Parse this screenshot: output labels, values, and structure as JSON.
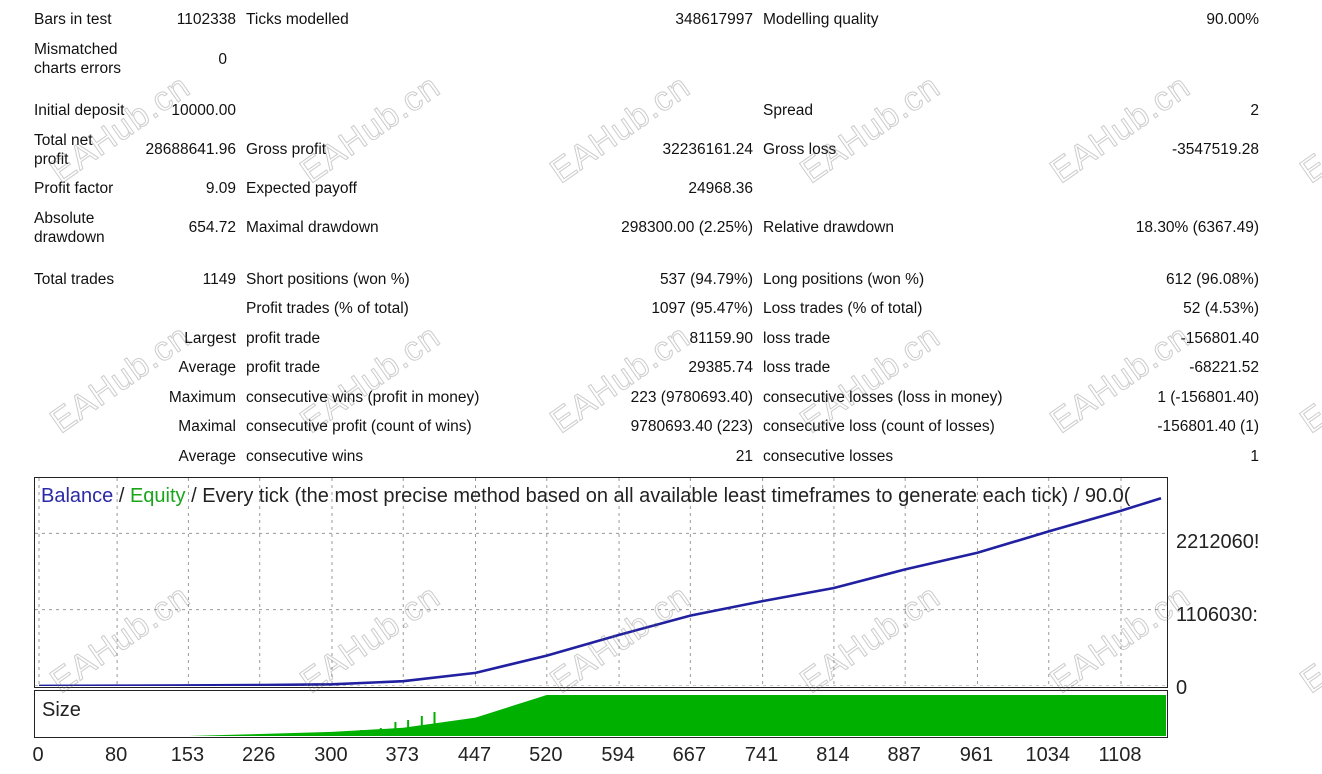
{
  "stats": {
    "bars_in_test": {
      "label": "Bars in test",
      "value": "1102338"
    },
    "ticks_modelled": {
      "label": "Ticks modelled",
      "value": "348617997"
    },
    "modelling_quality": {
      "label": "Modelling quality",
      "value": "90.00%"
    },
    "mismatched": {
      "label": "Mismatched charts errors",
      "value": "0"
    },
    "initial_deposit": {
      "label": "Initial deposit",
      "value": "10000.00"
    },
    "spread": {
      "label": "Spread",
      "value": "2"
    },
    "total_net_profit": {
      "label": "Total net profit",
      "value": "28688641.96"
    },
    "gross_profit": {
      "label": "Gross profit",
      "value": "32236161.24"
    },
    "gross_loss": {
      "label": "Gross loss",
      "value": "-3547519.28"
    },
    "profit_factor": {
      "label": "Profit factor",
      "value": "9.09"
    },
    "expected_payoff": {
      "label": "Expected payoff",
      "value": "24968.36"
    },
    "absolute_drawdown": {
      "label": "Absolute drawdown",
      "value": "654.72"
    },
    "maximal_drawdown": {
      "label": "Maximal drawdown",
      "value": "298300.00 (2.25%)"
    },
    "relative_drawdown": {
      "label": "Relative drawdown",
      "value": "18.30% (6367.49)"
    },
    "total_trades": {
      "label": "Total trades",
      "value": "1149"
    },
    "short_positions": {
      "label": "Short positions (won %)",
      "value": "537 (94.79%)"
    },
    "long_positions": {
      "label": "Long positions (won %)",
      "value": "612 (96.08%)"
    },
    "profit_trades": {
      "label": "Profit trades (% of total)",
      "value": "1097 (95.47%)"
    },
    "loss_trades": {
      "label": "Loss trades (% of total)",
      "value": "52 (4.53%)"
    },
    "largest": {
      "label": "Largest",
      "profit_label": "profit trade",
      "profit_value": "81159.90",
      "loss_label": "loss trade",
      "loss_value": "-156801.40"
    },
    "average": {
      "label": "Average",
      "profit_label": "profit trade",
      "profit_value": "29385.74",
      "loss_label": "loss trade",
      "loss_value": "-68221.52"
    },
    "maximum": {
      "label": "Maximum",
      "wins_label": "consecutive wins (profit in money)",
      "wins_value": "223 (9780693.40)",
      "losses_label": "consecutive losses (loss in money)",
      "losses_value": "1 (-156801.40)"
    },
    "maximal": {
      "label": "Maximal",
      "profit_label": "consecutive profit (count of wins)",
      "profit_value": "9780693.40 (223)",
      "loss_label": "consecutive loss (count of losses)",
      "loss_value": "-156801.40 (1)"
    },
    "average_consecutive": {
      "label": "Average",
      "wins_label": "consecutive wins",
      "wins_value": "21",
      "losses_label": "consecutive losses",
      "losses_value": "1"
    }
  },
  "watermark": "EAHub.cn",
  "chart": {
    "title_balance": "Balance",
    "title_sep1": " / ",
    "title_equity": "Equity",
    "title_rest": " / Every tick (the most precise method based on all available least timeframes to generate each tick) / 90.0(",
    "y_labels": [
      "2212060!",
      "1106030:",
      "0"
    ],
    "size_label": "Size",
    "x_labels": [
      "0",
      "80",
      "153",
      "226",
      "300",
      "373",
      "447",
      "520",
      "594",
      "667",
      "741",
      "814",
      "887",
      "961",
      "1034",
      "1108"
    ],
    "colors": {
      "balance": "#2020a0",
      "equity": "#1aa51a",
      "size": "#00b000",
      "grid": "#9a9a9a"
    }
  },
  "chart_data": {
    "type": "line",
    "title": "Balance / Equity / Every tick (the most precise method based on all available least timeframes to generate each tick) / 90.0(",
    "x_ticks": [
      0,
      80,
      153,
      226,
      300,
      373,
      447,
      520,
      594,
      667,
      741,
      814,
      887,
      961,
      1034,
      1108
    ],
    "ylim": [
      0,
      28688641.96
    ],
    "y_ticks": [
      0,
      11060300,
      22120600
    ],
    "series": [
      {
        "name": "Balance",
        "x": [
          0,
          80,
          153,
          226,
          300,
          373,
          447,
          520,
          594,
          667,
          741,
          814,
          887,
          961,
          1034,
          1108,
          1149
        ],
        "values": [
          10000,
          40000,
          80000,
          150000,
          250000,
          700000,
          1900000,
          4400000,
          7400000,
          10200000,
          12300000,
          14200000,
          16900000,
          19300000,
          22400000,
          25400000,
          27200000
        ]
      }
    ],
    "size_series": {
      "name": "Size",
      "note_values": [
        0,
        0,
        0,
        0.05,
        0.1,
        0.2,
        0.45,
        1,
        1,
        1,
        1,
        1,
        1,
        1,
        1,
        1,
        1
      ]
    }
  }
}
